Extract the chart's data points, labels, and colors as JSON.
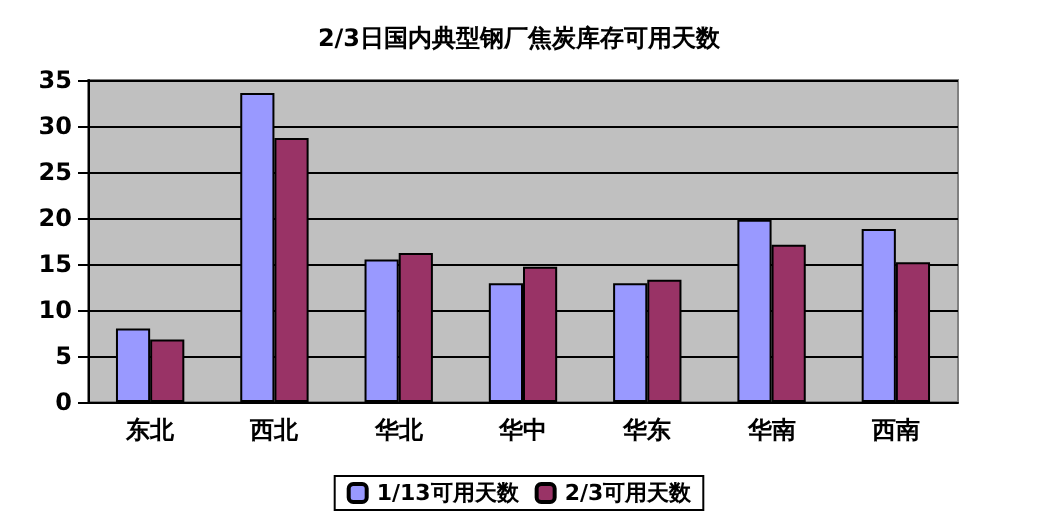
{
  "chart_data": {
    "type": "bar",
    "title": "2/3日国内典型钢厂焦炭库存可用天数",
    "categories": [
      "东北",
      "西北",
      "华北",
      "华中",
      "华东",
      "华南",
      "西南"
    ],
    "series": [
      {
        "name": "1/13可用天数",
        "color": "#9999ff",
        "values": [
          8,
          33.6,
          15.5,
          12.9,
          12.9,
          19.8,
          18.8
        ]
      },
      {
        "name": "2/3可用天数",
        "color": "#993366",
        "values": [
          6.8,
          28.7,
          16.2,
          14.7,
          13.3,
          17.1,
          15.2
        ]
      }
    ],
    "ylim": [
      0,
      35
    ],
    "yticks": [
      0,
      5,
      10,
      15,
      20,
      25,
      30,
      35
    ],
    "grid": "y",
    "legend": "bottom"
  }
}
